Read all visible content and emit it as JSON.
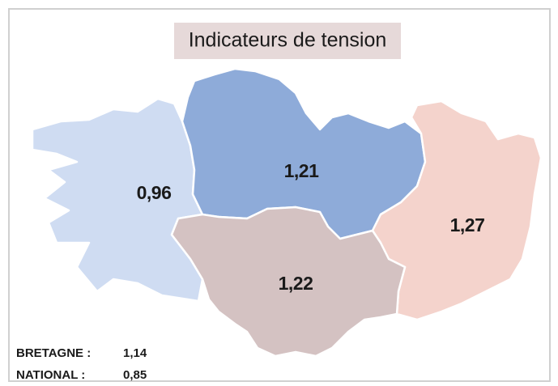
{
  "title": "Indicateurs de tension",
  "regions": [
    {
      "label": "0,96",
      "color": "#cfdcf2"
    },
    {
      "label": "1,21",
      "color": "#8eabd9"
    },
    {
      "label": "1,27",
      "color": "#f4d3cc"
    },
    {
      "label": "1,22",
      "color": "#d4c2c2"
    }
  ],
  "summary": [
    {
      "name": "BRETAGNE :",
      "value": "1,14"
    },
    {
      "name": "NATIONAL :",
      "value": "0,85"
    }
  ]
}
